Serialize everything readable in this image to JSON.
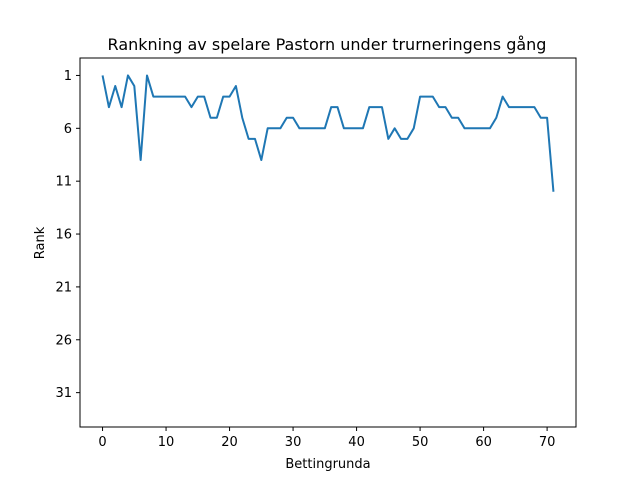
{
  "chart_data": {
    "type": "line",
    "title": "Rankning av spelare Pastorn under trurneringens gång",
    "xlabel": "Bettingrunda",
    "ylabel": "Rank",
    "xlim": [
      -3.55,
      74.55
    ],
    "ylim": [
      34.25,
      -0.65
    ],
    "y_inverted": true,
    "xticks": [
      0,
      10,
      20,
      30,
      40,
      50,
      60,
      70
    ],
    "yticks": [
      1,
      6,
      11,
      16,
      21,
      26,
      31
    ],
    "grid": false,
    "line_color": "#1f77b4",
    "series": [
      {
        "name": "",
        "x": [
          0,
          1,
          2,
          3,
          4,
          5,
          6,
          7,
          8,
          9,
          10,
          11,
          12,
          13,
          14,
          15,
          16,
          17,
          18,
          19,
          20,
          21,
          22,
          23,
          24,
          25,
          26,
          27,
          28,
          29,
          30,
          31,
          32,
          33,
          34,
          35,
          36,
          37,
          38,
          39,
          40,
          41,
          42,
          43,
          44,
          45,
          46,
          47,
          48,
          49,
          50,
          51,
          52,
          53,
          54,
          55,
          56,
          57,
          58,
          59,
          60,
          61,
          62,
          63,
          64,
          65,
          66,
          67,
          68,
          69,
          70,
          71
        ],
        "values": [
          1,
          4,
          2,
          4,
          1,
          2,
          9,
          1,
          3,
          3,
          3,
          3,
          3,
          3,
          4,
          3,
          3,
          5,
          5,
          3,
          3,
          2,
          5,
          7,
          7,
          9,
          6,
          6,
          6,
          5,
          5,
          6,
          6,
          6,
          6,
          6,
          4,
          4,
          6,
          6,
          6,
          6,
          4,
          4,
          4,
          7,
          6,
          7,
          7,
          6,
          3,
          3,
          3,
          4,
          4,
          5,
          5,
          6,
          6,
          6,
          6,
          6,
          5,
          3,
          4,
          4,
          4,
          4,
          4,
          5,
          5,
          12
        ]
      }
    ]
  }
}
